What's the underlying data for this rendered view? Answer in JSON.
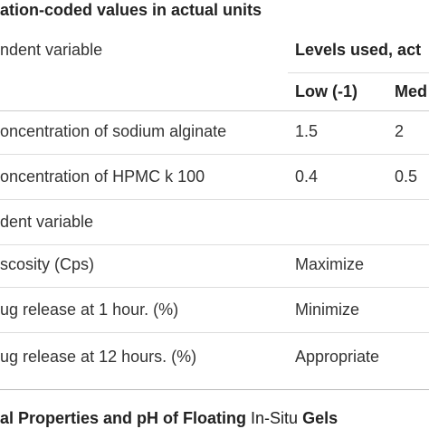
{
  "title": "ation-coded values in actual units",
  "table": {
    "header": [
      "ndent variable",
      "Levels used, act"
    ],
    "subheader": [
      "Low (-1)",
      "Med"
    ],
    "rows": [
      [
        "oncentration of sodium alginate",
        "1.5",
        "2"
      ],
      [
        "oncentration of HPMC k 100",
        "0.4",
        "0.5"
      ],
      [
        "dent variable"
      ],
      [
        "scosity (Cps)",
        "Maximize"
      ],
      [
        "ug release at 1 hour. (%)",
        "Minimize"
      ],
      [
        "ug release at 12 hours. (%)",
        "Appropriate"
      ]
    ]
  },
  "caption": [
    "al Properties and pH of Floating",
    "In-Situ",
    "Gels"
  ]
}
